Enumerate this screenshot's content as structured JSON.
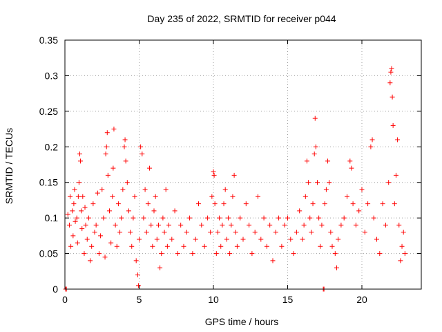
{
  "chart_data": {
    "type": "scatter",
    "title": "Day 235 of 2022, SRMTID for receiver p044",
    "xlabel": "GPS time / hours",
    "ylabel": "SRMTID / TECUs",
    "xlim": [
      0,
      24
    ],
    "ylim": [
      0,
      0.35
    ],
    "xticks": [
      "0",
      "5",
      "10",
      "15",
      "20"
    ],
    "yticks": [
      "0",
      "0.05",
      "0.1",
      "0.15",
      "0.2",
      "0.25",
      "0.3",
      "0.35"
    ],
    "grid": true,
    "marker": "+",
    "series_color": "#ff0000",
    "series": [
      {
        "name": "SRMTID",
        "points": [
          [
            0.05,
            0.0
          ],
          [
            0.1,
            0.0
          ],
          [
            0.2,
            0.105
          ],
          [
            0.3,
            0.09
          ],
          [
            0.35,
            0.13
          ],
          [
            0.4,
            0.06
          ],
          [
            0.5,
            0.11
          ],
          [
            0.55,
            0.075
          ],
          [
            0.6,
            0.12
          ],
          [
            0.65,
            0.14
          ],
          [
            0.7,
            0.095
          ],
          [
            0.8,
            0.1
          ],
          [
            0.85,
            0.065
          ],
          [
            0.9,
            0.13
          ],
          [
            0.95,
            0.15
          ],
          [
            1.0,
            0.19
          ],
          [
            1.05,
            0.18
          ],
          [
            1.1,
            0.11
          ],
          [
            1.15,
            0.085
          ],
          [
            1.2,
            0.13
          ],
          [
            1.3,
            0.05
          ],
          [
            1.35,
            0.115
          ],
          [
            1.4,
            0.09
          ],
          [
            1.5,
            0.07
          ],
          [
            1.6,
            0.1
          ],
          [
            1.7,
            0.04
          ],
          [
            1.8,
            0.06
          ],
          [
            1.9,
            0.12
          ],
          [
            2.0,
            0.08
          ],
          [
            2.1,
            0.09
          ],
          [
            2.2,
            0.135
          ],
          [
            2.3,
            0.05
          ],
          [
            2.4,
            0.075
          ],
          [
            2.5,
            0.14
          ],
          [
            2.6,
            0.1
          ],
          [
            2.7,
            0.045
          ],
          [
            2.75,
            0.19
          ],
          [
            2.8,
            0.2
          ],
          [
            2.85,
            0.22
          ],
          [
            2.9,
            0.16
          ],
          [
            3.0,
            0.11
          ],
          [
            3.1,
            0.065
          ],
          [
            3.2,
            0.13
          ],
          [
            3.25,
            0.17
          ],
          [
            3.3,
            0.225
          ],
          [
            3.4,
            0.09
          ],
          [
            3.5,
            0.06
          ],
          [
            3.6,
            0.12
          ],
          [
            3.7,
            0.08
          ],
          [
            3.8,
            0.1
          ],
          [
            3.9,
            0.14
          ],
          [
            4.0,
            0.2
          ],
          [
            4.05,
            0.21
          ],
          [
            4.1,
            0.18
          ],
          [
            4.2,
            0.15
          ],
          [
            4.3,
            0.11
          ],
          [
            4.4,
            0.08
          ],
          [
            4.5,
            0.06
          ],
          [
            4.6,
            0.1
          ],
          [
            4.7,
            0.13
          ],
          [
            4.8,
            0.04
          ],
          [
            4.9,
            0.02
          ],
          [
            4.95,
            0.005
          ],
          [
            5.0,
            0.07
          ],
          [
            5.1,
            0.2
          ],
          [
            5.2,
            0.19
          ],
          [
            5.3,
            0.1
          ],
          [
            5.4,
            0.14
          ],
          [
            5.5,
            0.08
          ],
          [
            5.6,
            0.12
          ],
          [
            5.7,
            0.17
          ],
          [
            5.8,
            0.09
          ],
          [
            5.9,
            0.06
          ],
          [
            6.0,
            0.11
          ],
          [
            6.1,
            0.13
          ],
          [
            6.2,
            0.07
          ],
          [
            6.3,
            0.09
          ],
          [
            6.4,
            0.03
          ],
          [
            6.5,
            0.05
          ],
          [
            6.6,
            0.1
          ],
          [
            6.7,
            0.08
          ],
          [
            6.8,
            0.14
          ],
          [
            6.9,
            0.06
          ],
          [
            7.0,
            0.09
          ],
          [
            7.2,
            0.07
          ],
          [
            7.4,
            0.11
          ],
          [
            7.6,
            0.05
          ],
          [
            7.8,
            0.09
          ],
          [
            8.0,
            0.06
          ],
          [
            8.2,
            0.08
          ],
          [
            8.4,
            0.1
          ],
          [
            8.6,
            0.05
          ],
          [
            8.8,
            0.07
          ],
          [
            9.0,
            0.12
          ],
          [
            9.2,
            0.09
          ],
          [
            9.4,
            0.06
          ],
          [
            9.6,
            0.1
          ],
          [
            9.8,
            0.08
          ],
          [
            9.9,
            0.13
          ],
          [
            10.0,
            0.165
          ],
          [
            10.05,
            0.16
          ],
          [
            10.1,
            0.12
          ],
          [
            10.2,
            0.05
          ],
          [
            10.3,
            0.08
          ],
          [
            10.4,
            0.1
          ],
          [
            10.5,
            0.06
          ],
          [
            10.6,
            0.09
          ],
          [
            10.7,
            0.12
          ],
          [
            10.8,
            0.14
          ],
          [
            10.9,
            0.07
          ],
          [
            11.0,
            0.1
          ],
          [
            11.1,
            0.05
          ],
          [
            11.2,
            0.09
          ],
          [
            11.3,
            0.13
          ],
          [
            11.4,
            0.16
          ],
          [
            11.5,
            0.08
          ],
          [
            11.6,
            0.06
          ],
          [
            11.8,
            0.1
          ],
          [
            12.0,
            0.07
          ],
          [
            12.2,
            0.12
          ],
          [
            12.4,
            0.09
          ],
          [
            12.6,
            0.05
          ],
          [
            12.8,
            0.08
          ],
          [
            13.0,
            0.13
          ],
          [
            13.2,
            0.07
          ],
          [
            13.4,
            0.1
          ],
          [
            13.6,
            0.06
          ],
          [
            13.8,
            0.09
          ],
          [
            14.0,
            0.04
          ],
          [
            14.2,
            0.08
          ],
          [
            14.4,
            0.1
          ],
          [
            14.6,
            0.06
          ],
          [
            14.8,
            0.09
          ],
          [
            15.0,
            0.1
          ],
          [
            15.2,
            0.07
          ],
          [
            15.4,
            0.05
          ],
          [
            15.6,
            0.08
          ],
          [
            15.8,
            0.11
          ],
          [
            16.0,
            0.07
          ],
          [
            16.1,
            0.09
          ],
          [
            16.2,
            0.13
          ],
          [
            16.3,
            0.18
          ],
          [
            16.4,
            0.15
          ],
          [
            16.5,
            0.1
          ],
          [
            16.6,
            0.08
          ],
          [
            16.7,
            0.12
          ],
          [
            16.8,
            0.19
          ],
          [
            16.85,
            0.24
          ],
          [
            16.9,
            0.2
          ],
          [
            17.0,
            0.15
          ],
          [
            17.1,
            0.1
          ],
          [
            17.2,
            0.06
          ],
          [
            17.3,
            0.09
          ],
          [
            17.4,
            0.0
          ],
          [
            17.45,
            0.0
          ],
          [
            17.5,
            0.12
          ],
          [
            17.6,
            0.14
          ],
          [
            17.7,
            0.18
          ],
          [
            17.8,
            0.15
          ],
          [
            17.9,
            0.08
          ],
          [
            18.0,
            0.06
          ],
          [
            18.2,
            0.05
          ],
          [
            18.3,
            0.03
          ],
          [
            18.4,
            0.07
          ],
          [
            18.6,
            0.09
          ],
          [
            18.8,
            0.1
          ],
          [
            19.0,
            0.13
          ],
          [
            19.2,
            0.18
          ],
          [
            19.3,
            0.17
          ],
          [
            19.4,
            0.12
          ],
          [
            19.6,
            0.09
          ],
          [
            19.8,
            0.11
          ],
          [
            20.0,
            0.14
          ],
          [
            20.2,
            0.08
          ],
          [
            20.4,
            0.12
          ],
          [
            20.6,
            0.2
          ],
          [
            20.7,
            0.21
          ],
          [
            20.8,
            0.1
          ],
          [
            21.0,
            0.07
          ],
          [
            21.2,
            0.05
          ],
          [
            21.4,
            0.12
          ],
          [
            21.6,
            0.09
          ],
          [
            21.8,
            0.15
          ],
          [
            21.9,
            0.29
          ],
          [
            21.95,
            0.305
          ],
          [
            22.0,
            0.31
          ],
          [
            22.05,
            0.27
          ],
          [
            22.1,
            0.23
          ],
          [
            22.2,
            0.12
          ],
          [
            22.3,
            0.16
          ],
          [
            22.4,
            0.21
          ],
          [
            22.5,
            0.09
          ],
          [
            22.6,
            0.04
          ],
          [
            22.7,
            0.06
          ],
          [
            22.8,
            0.08
          ],
          [
            22.9,
            0.05
          ]
        ]
      }
    ]
  }
}
